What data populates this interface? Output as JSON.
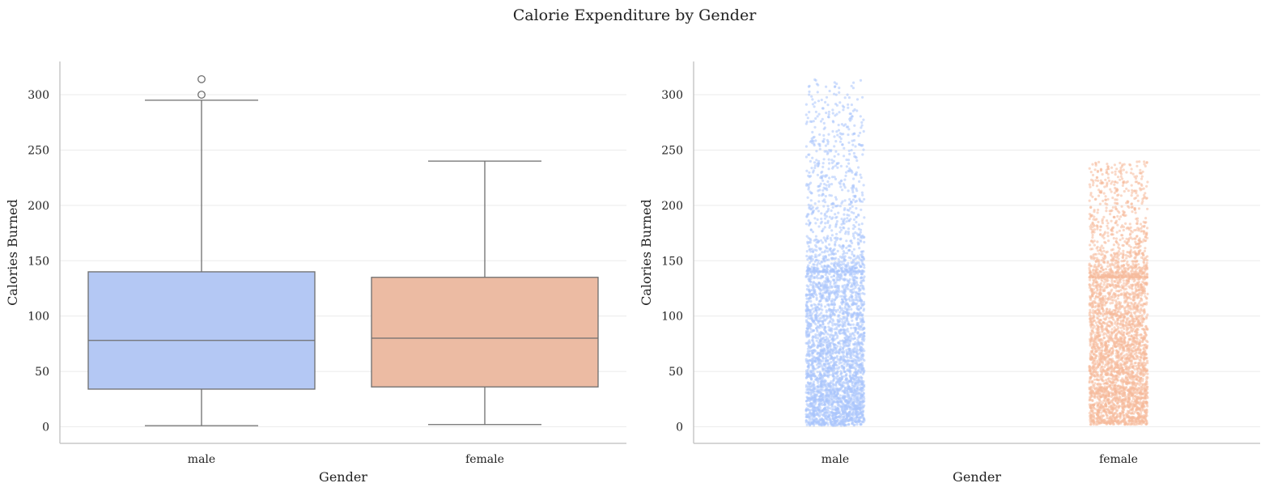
{
  "title": "Calorie Expenditure by Gender",
  "colors": {
    "male": "#b4c8f4",
    "female": "#ecbba3",
    "male_point": "#a9c4fb",
    "female_point": "#f5b99b",
    "box_line": "#6e6e6e",
    "grid": "#ebebeb",
    "axis": "#c8c8c8"
  },
  "chart_data": [
    {
      "type": "box",
      "xlabel": "Gender",
      "ylabel": "Calories Burned",
      "categories": [
        "male",
        "female"
      ],
      "ylim": [
        -15,
        330
      ],
      "yticks": [
        0,
        50,
        100,
        150,
        200,
        250,
        300
      ],
      "grid": "horizontal",
      "boxes": [
        {
          "category": "male",
          "whisker_low": 1,
          "q1": 34,
          "median": 78,
          "q3": 140,
          "whisker_high": 295,
          "outliers": [
            300,
            314
          ]
        },
        {
          "category": "female",
          "whisker_low": 2,
          "q1": 36,
          "median": 80,
          "q3": 135,
          "whisker_high": 240,
          "outliers": []
        }
      ]
    },
    {
      "type": "scatter",
      "subtype": "strip",
      "xlabel": "Gender",
      "ylabel": "Calories Burned",
      "categories": [
        "male",
        "female"
      ],
      "ylim": [
        -15,
        330
      ],
      "yticks": [
        0,
        50,
        100,
        150,
        200,
        250,
        300
      ],
      "grid": "horizontal",
      "groups": [
        {
          "category": "male",
          "min": 1,
          "q1": 34,
          "median": 78,
          "q3": 140,
          "max": 314
        },
        {
          "category": "female",
          "min": 2,
          "q1": 36,
          "median": 80,
          "q3": 135,
          "max": 240
        }
      ]
    }
  ]
}
